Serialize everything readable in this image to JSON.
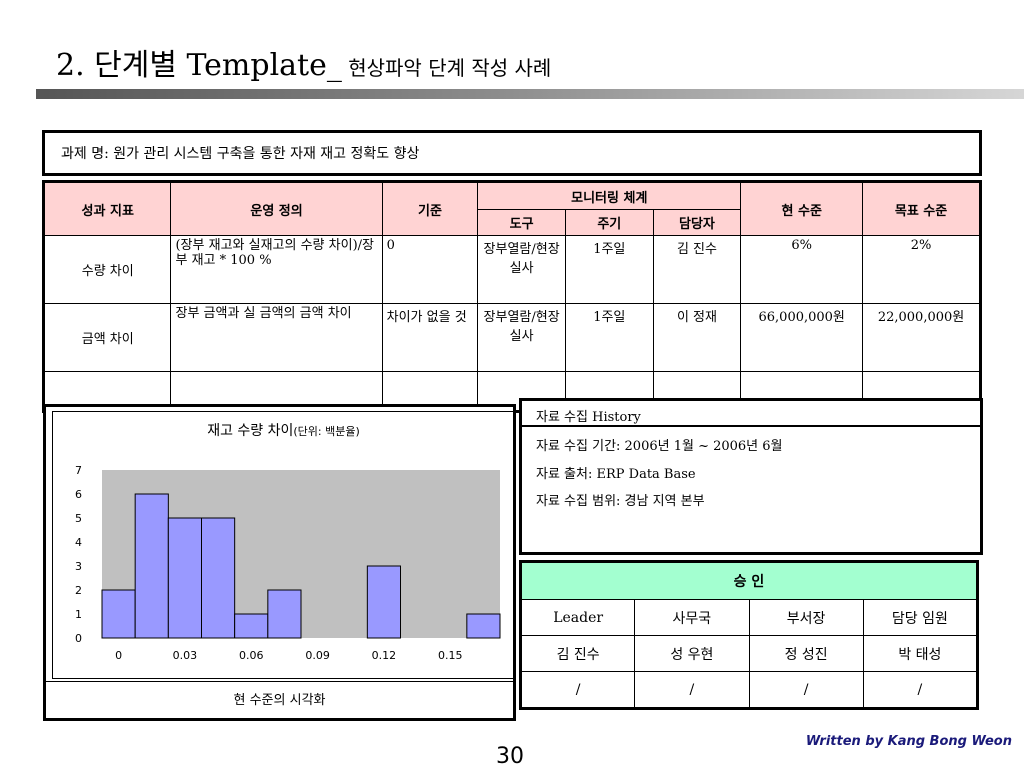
{
  "slide": {
    "title_main": "2. 단계별 Template_",
    "title_sub": " 현상파악 단계 작성 사례",
    "page_number": "30",
    "credit": "Written by Kang Bong Weon"
  },
  "project": {
    "text": "과제 명: 원가 관리 시스템 구축을 통한 자재 재고 정확도 향상"
  },
  "kpi_table": {
    "headers": {
      "metric": "성과 지표",
      "definition": "운영 정의",
      "standard": "기준",
      "monitoring": "모니터링 체계",
      "tool": "도구",
      "cycle": "주기",
      "owner": "담당자",
      "current": "현 수준",
      "target": "목표 수준"
    },
    "rows": [
      {
        "metric": "수량 차이",
        "definition": "(장부 재고와 실재고의 수량  차이)/장부 재고 * 100 %",
        "standard": "0",
        "tool": "장부열람/현장실사",
        "cycle": "1주일",
        "owner": "김 진수",
        "current": "6%",
        "target": "2%"
      },
      {
        "metric": "금액 차이",
        "definition": "장부 금액과 실 금액의 금액 차이",
        "standard": "차이가 없을 것",
        "tool": "장부열람/현장실사",
        "cycle": "1주일",
        "owner": "이 정재",
        "current": "66,000,000원",
        "target": "22,000,000원"
      }
    ]
  },
  "chart": {
    "title": "재고 수량 차이",
    "title_unit": "(단위: 백분율)",
    "caption": "현 수준의 시각화",
    "bar_color": "#9999ff",
    "plot_bg": "#c0c0c0"
  },
  "chart_data": {
    "type": "bar",
    "title": "재고 수량 차이(단위: 백분율)",
    "xlabel": "",
    "ylabel": "",
    "bin_width": 0.015,
    "x_start": 0,
    "x_ticks": [
      "0",
      "0.03",
      "0.06",
      "0.09",
      "0.12",
      "0.15"
    ],
    "y_ticks": [
      "0",
      "1",
      "2",
      "3",
      "4",
      "5",
      "6",
      "7"
    ],
    "ylim": [
      0,
      7
    ],
    "xlim": [
      0,
      0.18
    ],
    "values": [
      2,
      6,
      5,
      5,
      1,
      2,
      0,
      0,
      3,
      0,
      0,
      1
    ]
  },
  "history": {
    "header": "자료 수집 History",
    "lines": [
      "자료 수집 기간: 2006년 1월 ~ 2006년 6월",
      "자료 출처: ERP Data Base",
      "자료 수집 범위: 경남 지역 본부"
    ]
  },
  "approval": {
    "header": "승 인",
    "roles": [
      "Leader",
      "사무국",
      "부서장",
      "담당 임원"
    ],
    "names": [
      "김 진수",
      "성 우현",
      "정 성진",
      "박 태성"
    ],
    "signs": [
      "/",
      "/",
      "/",
      "/"
    ]
  }
}
